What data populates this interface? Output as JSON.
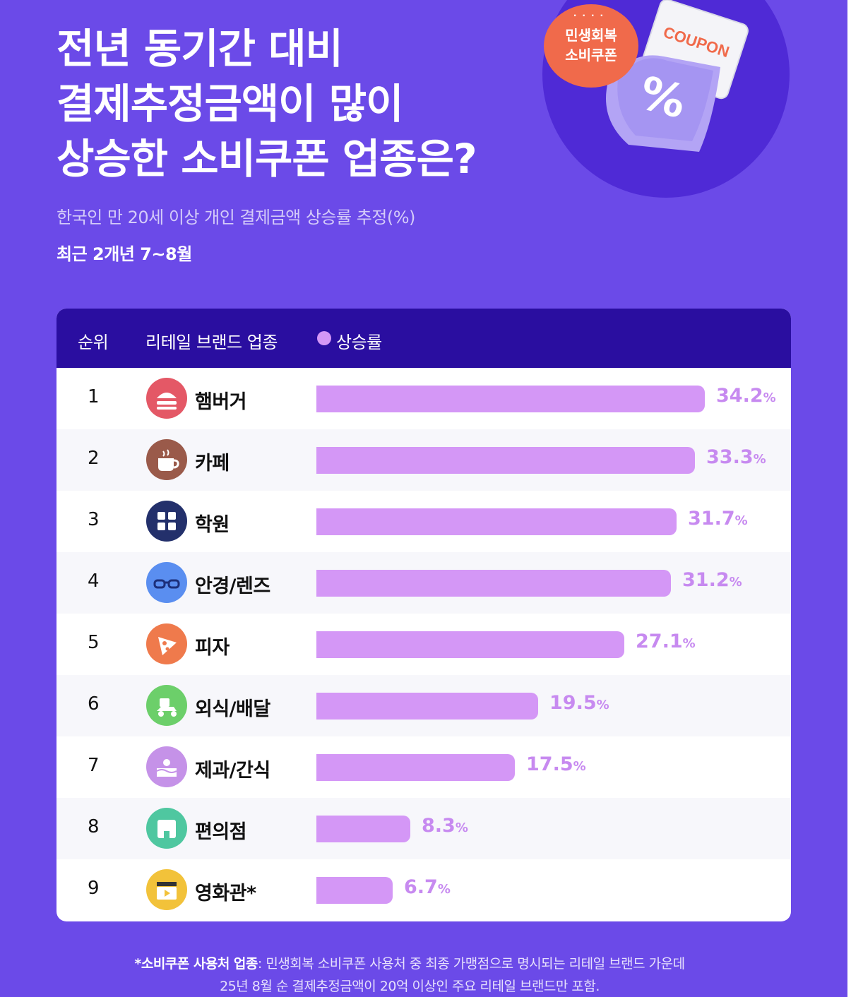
{
  "header": {
    "title_lines": [
      "전년 동기간 대비",
      "결제추정금액이 많이",
      "상승한 소비쿠폰 업종은?"
    ],
    "subtitle": "한국인 만 20세 이상 개인 결제금액 상승률 추정(%)",
    "period": "최근 2개년 7~8월"
  },
  "decoration": {
    "badge_line1": "민생회복",
    "badge_line2": "소비쿠폰",
    "coupon_word": "COUPON",
    "coupon_symbol": "%"
  },
  "table": {
    "col_rank": "순위",
    "col_category": "리테일 브랜드 업종",
    "col_legend": "상승률",
    "percent_unit": "%"
  },
  "chart_data": {
    "type": "bar",
    "orientation": "horizontal",
    "categories": [
      "햄버거",
      "카페",
      "학원",
      "안경/렌즈",
      "피자",
      "외식/배달",
      "제과/간식",
      "편의점",
      "영화관*"
    ],
    "ranks": [
      "1",
      "2",
      "3",
      "4",
      "5",
      "6",
      "7",
      "8",
      "9"
    ],
    "series": [
      {
        "name": "상승률",
        "values": [
          34.2,
          33.3,
          31.7,
          31.2,
          27.1,
          19.5,
          17.5,
          8.3,
          6.7
        ]
      }
    ],
    "value_labels": [
      "34.2",
      "33.3",
      "31.7",
      "31.2",
      "27.1",
      "19.5",
      "17.5",
      "8.3",
      "6.7"
    ],
    "icons": [
      "hamburger-icon",
      "coffee-cup-icon",
      "calculator-icon",
      "glasses-icon",
      "pizza-icon",
      "delivery-scooter-icon",
      "cake-icon",
      "convenience-store-icon",
      "clapperboard-icon"
    ],
    "icon_colors": [
      "#e45866",
      "#9a5a4a",
      "#23306b",
      "#5a8ef0",
      "#ef7a4c",
      "#6ccf6a",
      "#c592e8",
      "#4fc7a0",
      "#f2c23a"
    ],
    "bar_color": "#d497f6",
    "xlim": [
      0,
      34.2
    ]
  },
  "footnote": {
    "bold": "*소비쿠폰 사용처 업종",
    "line1_rest": ": 민생회복 소비쿠폰 사용처 중 최종 가맹점으로 명시되는 리테일 브랜드 가운데",
    "line2": "25년 8월 순 결제추정금액이 20억 이상인 주요 리테일 브랜드만 포함."
  },
  "colors": {
    "background": "#6b4ae8",
    "table_header": "#2a0ea0",
    "badge": "#f06a4b",
    "circle": "#4f2ad6"
  }
}
